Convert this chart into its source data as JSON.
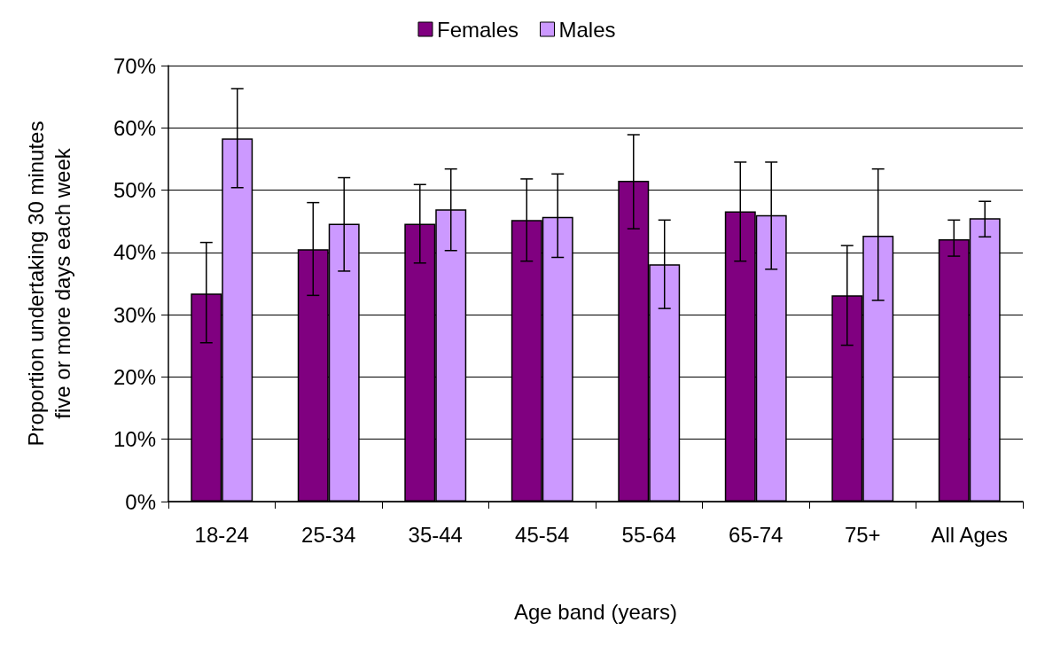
{
  "chart_data": {
    "type": "bar",
    "xlabel": "Age band (years)",
    "ylabel": "Proportion undertaking 30 minutes\nfive or more days each week",
    "categories": [
      "18-24",
      "25-34",
      "35-44",
      "45-54",
      "55-64",
      "65-74",
      "75+",
      "All Ages"
    ],
    "series": [
      {
        "name": "Females",
        "color": "#800080",
        "values": [
          33.4,
          40.5,
          44.6,
          45.2,
          51.5,
          46.6,
          33.1,
          42.1
        ],
        "errors": [
          [
            25.5,
            41.6
          ],
          [
            33.1,
            48.0
          ],
          [
            38.3,
            50.9
          ],
          [
            38.6,
            51.8
          ],
          [
            43.8,
            58.9
          ],
          [
            38.6,
            54.5
          ],
          [
            25.1,
            41.1
          ],
          [
            39.4,
            45.2
          ]
        ]
      },
      {
        "name": "Males",
        "color": "#cc99ff",
        "values": [
          58.3,
          44.6,
          46.9,
          45.7,
          38.1,
          46.0,
          42.7,
          45.5
        ],
        "errors": [
          [
            50.4,
            66.3
          ],
          [
            37.0,
            52.0
          ],
          [
            40.3,
            53.4
          ],
          [
            39.2,
            52.6
          ],
          [
            31.0,
            45.2
          ],
          [
            37.3,
            54.5
          ],
          [
            32.3,
            53.4
          ],
          [
            42.5,
            48.2
          ]
        ]
      }
    ],
    "ylim": [
      0,
      70
    ],
    "yticks": [
      {
        "value": 0,
        "label": "0%"
      },
      {
        "value": 10,
        "label": "10%"
      },
      {
        "value": 20,
        "label": "20%"
      },
      {
        "value": 30,
        "label": "30%"
      },
      {
        "value": 40,
        "label": "40%"
      },
      {
        "value": 50,
        "label": "50%"
      },
      {
        "value": 60,
        "label": "60%"
      },
      {
        "value": 70,
        "label": "70%"
      }
    ],
    "grid": "y",
    "legend": "top"
  }
}
